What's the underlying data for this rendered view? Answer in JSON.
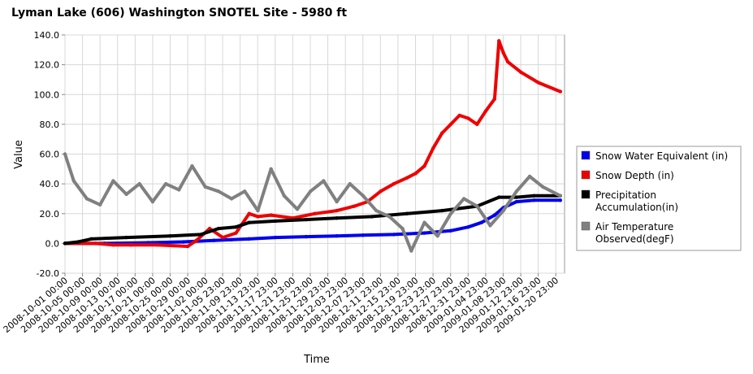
{
  "chart_data": {
    "type": "line",
    "title": "Lyman Lake (606) Washington  SNOTEL Site - 5980 ft",
    "xlabel": "Time",
    "ylabel": "Value",
    "ylim": [
      -20,
      140
    ],
    "yticks": [
      "140.0",
      "120.0",
      "100.0",
      "80.0",
      "60.0",
      "40.0",
      "20.0",
      "0.0",
      "-20.0"
    ],
    "yticks_values": [
      140,
      120,
      100,
      80,
      60,
      40,
      20,
      0,
      -20
    ],
    "x_start": "2008-10-01 00:00",
    "x_end": "2009-01-22 23:00",
    "xticks": [
      "2008-10-01 00:00",
      "2008-10-05 00:00",
      "2008-10-09 00:00",
      "2008-10-13 00:00",
      "2008-10-17 00:00",
      "2008-10-21 00:00",
      "2008-10-25 00:00",
      "2008-10-29 00:00",
      "2008-11-02 00:00",
      "2008-11-05 23:00",
      "2008-11-09 23:00",
      "2008-11-13 23:00",
      "2008-11-17 23:00",
      "2008-11-21 23:00",
      "2008-11-25 23:00",
      "2008-11-29 23:00",
      "2008-12-03 23:00",
      "2008-12-07 23:00",
      "2008-12-11 23:00",
      "2008-12-15 23:00",
      "2008-12-19 23:00",
      "2008-12-23 23:00",
      "2008-12-27 23:00",
      "2008-12-31 23:00",
      "2009-01-04 23:00",
      "2009-01-08 23:00",
      "2009-01-12 23:00",
      "2009-01-16 23:00",
      "2009-01-20 23:00"
    ],
    "grid": true,
    "legend_position": "right",
    "series": [
      {
        "name": "Snow Water Equivalent (in)",
        "color": "#0000ee",
        "x": [
          "2008-10-01",
          "2008-10-10",
          "2008-10-20",
          "2008-10-28",
          "2008-11-04",
          "2008-11-08",
          "2008-11-12",
          "2008-11-18",
          "2008-11-25",
          "2008-12-02",
          "2008-12-08",
          "2008-12-15",
          "2008-12-22",
          "2008-12-28",
          "2009-01-01",
          "2009-01-04",
          "2009-01-07",
          "2009-01-09",
          "2009-01-12",
          "2009-01-16",
          "2009-01-22"
        ],
        "values": [
          0,
          0,
          0.5,
          1,
          2,
          2.5,
          3,
          4,
          4.5,
          5,
          5.5,
          6,
          7,
          8.5,
          11,
          14,
          19,
          24,
          28,
          29,
          29
        ]
      },
      {
        "name": "Snow Depth (in)",
        "color": "#ee0000",
        "x": [
          "2008-10-01",
          "2008-10-08",
          "2008-10-12",
          "2008-10-16",
          "2008-10-22",
          "2008-10-29",
          "2008-10-31",
          "2008-11-03",
          "2008-11-06",
          "2008-11-09",
          "2008-11-12",
          "2008-11-14",
          "2008-11-17",
          "2008-11-22",
          "2008-11-27",
          "2008-12-02",
          "2008-12-06",
          "2008-12-09",
          "2008-12-12",
          "2008-12-15",
          "2008-12-18",
          "2008-12-20",
          "2008-12-22",
          "2008-12-24",
          "2008-12-26",
          "2008-12-28",
          "2008-12-30",
          "2009-01-01",
          "2009-01-03",
          "2009-01-05",
          "2009-01-07",
          "2009-01-08",
          "2009-01-09",
          "2009-01-10",
          "2009-01-13",
          "2009-01-17",
          "2009-01-22"
        ],
        "values": [
          0,
          0,
          -1,
          -1,
          -1,
          -2,
          2,
          10,
          4,
          7,
          20,
          18,
          19,
          17,
          20,
          22,
          25,
          28,
          35,
          40,
          44,
          47,
          52,
          64,
          74,
          80,
          86,
          84,
          80,
          89,
          97,
          136,
          128,
          122,
          115,
          108,
          102
        ]
      },
      {
        "name": "Precipitation Accumulation(in)",
        "color": "#000000",
        "x": [
          "2008-10-01",
          "2008-10-04",
          "2008-10-07",
          "2008-10-15",
          "2008-10-25",
          "2008-11-01",
          "2008-11-05",
          "2008-11-09",
          "2008-11-12",
          "2008-11-18",
          "2008-11-25",
          "2008-12-02",
          "2008-12-10",
          "2008-12-18",
          "2008-12-26",
          "2009-01-03",
          "2009-01-08",
          "2009-01-12",
          "2009-01-16",
          "2009-01-22"
        ],
        "values": [
          0,
          1,
          3,
          4,
          5,
          6,
          10,
          11,
          14,
          15,
          16,
          17,
          18,
          20,
          22,
          25,
          31,
          31,
          32,
          32
        ]
      },
      {
        "name": "Air Temperature Observed(degF)",
        "color": "#808080",
        "x": [
          "2008-10-01",
          "2008-10-03",
          "2008-10-06",
          "2008-10-09",
          "2008-10-12",
          "2008-10-15",
          "2008-10-18",
          "2008-10-21",
          "2008-10-24",
          "2008-10-27",
          "2008-10-30",
          "2008-11-02",
          "2008-11-05",
          "2008-11-08",
          "2008-11-11",
          "2008-11-14",
          "2008-11-17",
          "2008-11-20",
          "2008-11-23",
          "2008-11-26",
          "2008-11-29",
          "2008-12-02",
          "2008-12-05",
          "2008-12-08",
          "2008-12-11",
          "2008-12-14",
          "2008-12-17",
          "2008-12-19",
          "2008-12-22",
          "2008-12-25",
          "2008-12-28",
          "2008-12-31",
          "2009-01-03",
          "2009-01-06",
          "2009-01-09",
          "2009-01-12",
          "2009-01-15",
          "2009-01-18",
          "2009-01-22"
        ],
        "values": [
          60,
          42,
          30,
          26,
          42,
          33,
          40,
          28,
          40,
          36,
          52,
          38,
          35,
          30,
          35,
          22,
          50,
          32,
          23,
          35,
          42,
          28,
          40,
          32,
          22,
          18,
          10,
          -5,
          14,
          5,
          20,
          30,
          25,
          12,
          22,
          35,
          45,
          38,
          32
        ]
      }
    ]
  }
}
